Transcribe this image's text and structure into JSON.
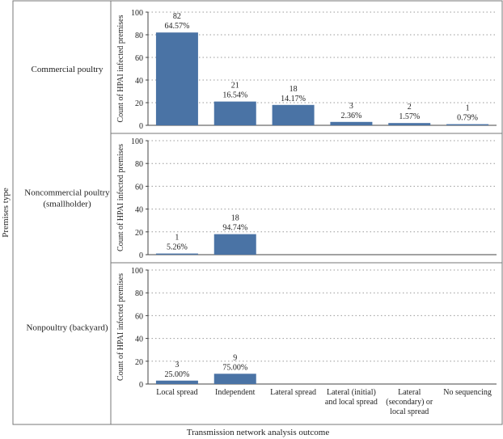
{
  "chart_data": {
    "type": "bar",
    "layout": "faceted-rows",
    "xlabel": "Transmission network analysis outcome",
    "row_axis_label": "Premises type",
    "ylabel": "Count of HPAI infected premises",
    "ylim": [
      0,
      100
    ],
    "yticks": [
      0,
      20,
      40,
      60,
      80,
      100
    ],
    "grid": "horizontal-dotted",
    "bar_color": "#4a73a5",
    "categories": [
      "Local spread",
      "Independent",
      "Lateral spread",
      "Lateral (initial) and local spread",
      "Lateral (secondary) or local spread",
      "No sequencing"
    ],
    "category_display": [
      [
        "Local spread"
      ],
      [
        "Independent"
      ],
      [
        "Lateral spread"
      ],
      [
        "Lateral (initial)",
        "and local spread"
      ],
      [
        "Lateral",
        "(secondary) or",
        "local spread"
      ],
      [
        "No sequencing"
      ]
    ],
    "panels": [
      {
        "name": "Commercial poultry",
        "name_lines": [
          "Commercial poultry"
        ],
        "values": [
          82,
          21,
          18,
          3,
          2,
          1
        ],
        "percents": [
          "64.57%",
          "16.54%",
          "14.17%",
          "2.36%",
          "1.57%",
          "0.79%"
        ]
      },
      {
        "name": "Noncommercial poultry (smallholder)",
        "name_lines": [
          "Noncommercial poultry",
          "(smallholder)"
        ],
        "values": [
          1,
          18,
          null,
          null,
          null,
          null
        ],
        "percents": [
          "5.26%",
          "94.74%",
          null,
          null,
          null,
          null
        ]
      },
      {
        "name": "Nonpoultry (backyard)",
        "name_lines": [
          "Nonpoultry (backyard)"
        ],
        "values": [
          3,
          9,
          null,
          null,
          null,
          null
        ],
        "percents": [
          "25.00%",
          "75.00%",
          null,
          null,
          null,
          null
        ]
      }
    ]
  }
}
